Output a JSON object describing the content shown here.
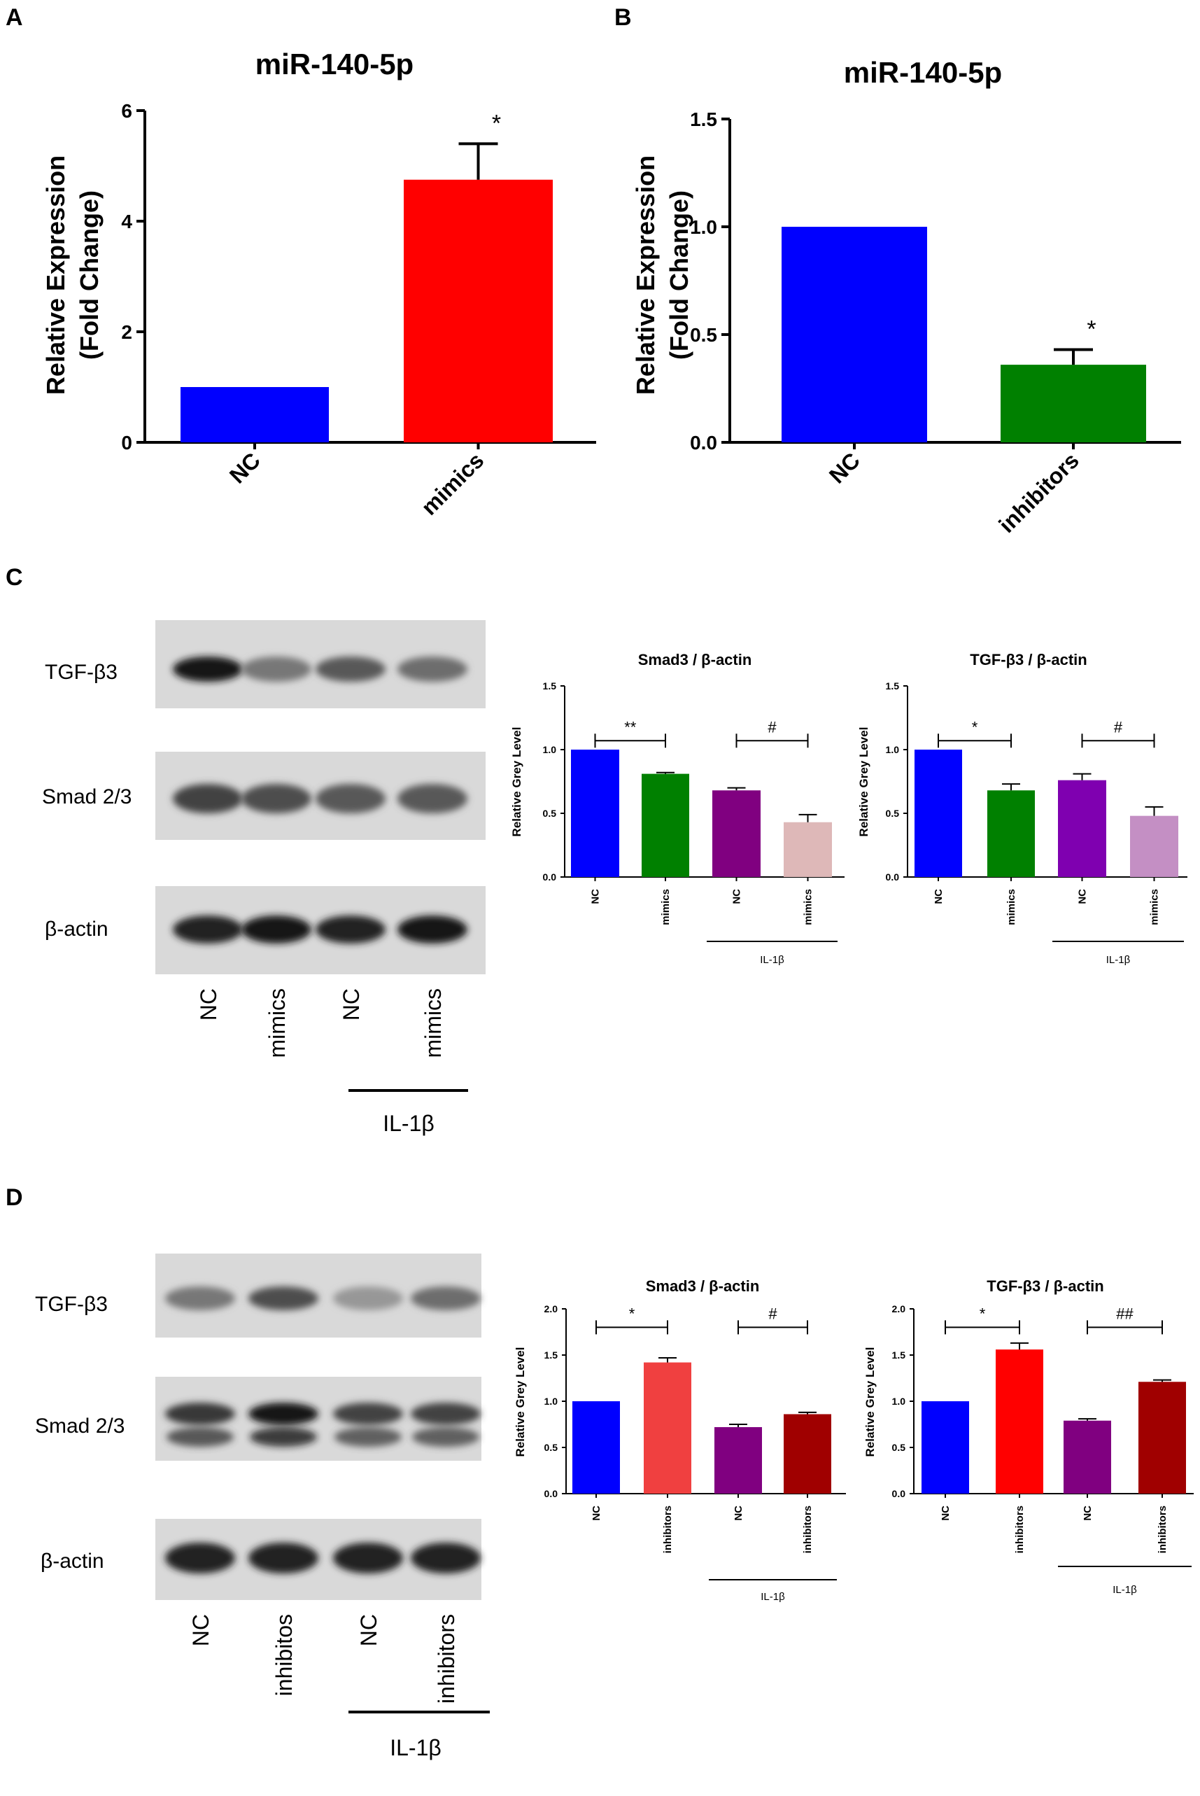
{
  "panels": {
    "A": "A",
    "B": "B",
    "C": "C",
    "D": "D"
  },
  "chart_data": [
    {
      "id": "A",
      "type": "bar",
      "title": "miR-140-5p",
      "ylabel": [
        "Relative Expression",
        "(Fold Change)"
      ],
      "categories": [
        "NC",
        "mimics"
      ],
      "values": [
        1.0,
        4.75
      ],
      "errors": [
        0,
        0.65
      ],
      "colors": [
        "#0000ff",
        "#ff0000"
      ],
      "ylim": [
        0,
        6
      ],
      "yticks": [
        0,
        2,
        4,
        6
      ],
      "ytick_labels": [
        "0",
        "2",
        "4",
        "6"
      ],
      "annotations": [
        {
          "text": "*",
          "index": 1
        }
      ]
    },
    {
      "id": "B",
      "type": "bar",
      "title": "miR-140-5p",
      "ylabel": [
        "Relative Expression",
        "(Fold Change)"
      ],
      "categories": [
        "NC",
        "inhibitors"
      ],
      "values": [
        1.0,
        0.36
      ],
      "errors": [
        0,
        0.07
      ],
      "colors": [
        "#0000ff",
        "#008000"
      ],
      "ylim": [
        0,
        1.5
      ],
      "yticks": [
        0,
        0.5,
        1.0,
        1.5
      ],
      "ytick_labels": [
        "0.0",
        "0.5",
        "1.0",
        "1.5"
      ],
      "annotations": [
        {
          "text": "*",
          "index": 1
        }
      ]
    },
    {
      "id": "C1",
      "type": "bar",
      "title": "Smad3 / β-actin",
      "ylabel": [
        "Relative Grey Level"
      ],
      "categories": [
        "NC",
        "mimics",
        "NC",
        "mimics"
      ],
      "values": [
        1.0,
        0.81,
        0.68,
        0.43
      ],
      "errors": [
        0,
        0.01,
        0.02,
        0.06
      ],
      "colors": [
        "#0000ff",
        "#008000",
        "#800080",
        "#deb8b8"
      ],
      "ylim": [
        0,
        1.5
      ],
      "yticks": [
        0,
        0.5,
        1.0,
        1.5
      ],
      "ytick_labels": [
        "0.0",
        "0.5",
        "1.0",
        "1.5"
      ],
      "brackets": [
        {
          "text": "**",
          "from": 0,
          "to": 1,
          "y": 1.07
        },
        {
          "text": "#",
          "from": 2,
          "to": 3,
          "y": 1.07
        }
      ],
      "group": {
        "label": "IL-1β",
        "from": 2,
        "to": 3
      }
    },
    {
      "id": "C2",
      "type": "bar",
      "title": "TGF-β3 / β-actin",
      "ylabel": [
        "Relative Grey Level"
      ],
      "categories": [
        "NC",
        "mimics",
        "NC",
        "mimics"
      ],
      "values": [
        1.0,
        0.68,
        0.76,
        0.48
      ],
      "errors": [
        0,
        0.05,
        0.05,
        0.07
      ],
      "colors": [
        "#0000ff",
        "#008000",
        "#7f00b0",
        "#c48fc4"
      ],
      "ylim": [
        0,
        1.5
      ],
      "yticks": [
        0,
        0.5,
        1.0,
        1.5
      ],
      "ytick_labels": [
        "0.0",
        "0.5",
        "1.0",
        "1.5"
      ],
      "brackets": [
        {
          "text": "*",
          "from": 0,
          "to": 1,
          "y": 1.07
        },
        {
          "text": "#",
          "from": 2,
          "to": 3,
          "y": 1.07
        }
      ],
      "group": {
        "label": "IL-1β",
        "from": 2,
        "to": 3
      }
    },
    {
      "id": "D1",
      "type": "bar",
      "title": "Smad3 / β-actin",
      "ylabel": [
        "Relative Grey Level"
      ],
      "categories": [
        "NC",
        "inhibitors",
        "NC",
        "inhibitors"
      ],
      "values": [
        1.0,
        1.42,
        0.72,
        0.86
      ],
      "errors": [
        0,
        0.05,
        0.03,
        0.02
      ],
      "colors": [
        "#0000ff",
        "#f04040",
        "#800080",
        "#a00000"
      ],
      "ylim": [
        0,
        2.0
      ],
      "yticks": [
        0,
        0.5,
        1.0,
        1.5,
        2.0
      ],
      "ytick_labels": [
        "0.0",
        "0.5",
        "1.0",
        "1.5",
        "2.0"
      ],
      "brackets": [
        {
          "text": "*",
          "from": 0,
          "to": 1,
          "y": 1.8
        },
        {
          "text": "#",
          "from": 2,
          "to": 3,
          "y": 1.8
        }
      ],
      "group": {
        "label": "IL-1β",
        "from": 2,
        "to": 3
      }
    },
    {
      "id": "D2",
      "type": "bar",
      "title": "TGF-β3 / β-actin",
      "ylabel": [
        "Relative Grey Level"
      ],
      "categories": [
        "NC",
        "inhibitors",
        "NC",
        "inhibitors"
      ],
      "values": [
        1.0,
        1.56,
        0.79,
        1.21
      ],
      "errors": [
        0,
        0.07,
        0.02,
        0.02
      ],
      "colors": [
        "#0000ff",
        "#ff0000",
        "#800080",
        "#a00000"
      ],
      "ylim": [
        0,
        2.0
      ],
      "yticks": [
        0,
        0.5,
        1.0,
        1.5,
        2.0
      ],
      "ytick_labels": [
        "0.0",
        "0.5",
        "1.0",
        "1.5",
        "2.0"
      ],
      "brackets": [
        {
          "text": "*",
          "from": 0,
          "to": 1,
          "y": 1.8
        },
        {
          "text": "##",
          "from": 2,
          "to": 3,
          "y": 1.8
        }
      ],
      "group": {
        "label": "IL-1β",
        "from": 2,
        "to": 3
      }
    }
  ],
  "blots": {
    "C": {
      "rows": [
        "TGF-β3",
        "Smad 2/3",
        "β-actin"
      ],
      "lanes": [
        "NC",
        "mimics",
        "NC",
        "mimics"
      ],
      "group_label": "IL-1β",
      "band_intensity": [
        [
          1.0,
          0.55,
          0.7,
          0.6
        ],
        [
          0.8,
          0.75,
          0.7,
          0.7
        ],
        [
          0.95,
          1.0,
          0.95,
          1.0
        ]
      ]
    },
    "D": {
      "rows": [
        "TGF-β3",
        "Smad 2/3",
        "β-actin"
      ],
      "lanes": [
        "NC",
        "inhibitos",
        "NC",
        "inhibitors"
      ],
      "group_label": "IL-1β",
      "band_intensity": [
        [
          0.55,
          0.75,
          0.4,
          0.6
        ],
        [
          0.85,
          1.0,
          0.8,
          0.8
        ],
        [
          0.95,
          0.95,
          0.95,
          0.95
        ]
      ]
    }
  }
}
